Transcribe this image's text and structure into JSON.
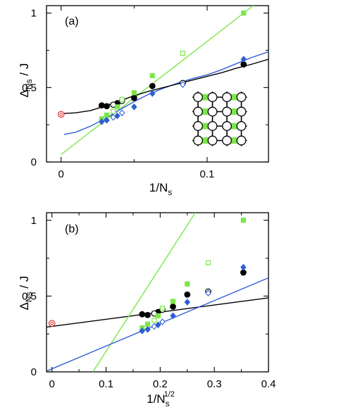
{
  "chart_data": [
    {
      "type": "scatter",
      "panel_label": "(a)",
      "xlabel_main": "1/N",
      "xlabel_sub": "s",
      "xlabel_sup": "",
      "ylabel_main": "Δ",
      "ylabel_sub": "Ns",
      "ylabel_tail": " / J",
      "xlim": [
        -0.01,
        0.142
      ],
      "ylim": [
        0,
        1.05
      ],
      "xticks": [
        {
          "v": 0,
          "label": "0"
        },
        {
          "v": 0.1,
          "label": "0.1"
        }
      ],
      "xminor": [
        0.05
      ],
      "yticks": [
        {
          "v": 0,
          "label": "0"
        },
        {
          "v": 0.5,
          "label": "0.5"
        },
        {
          "v": 1,
          "label": "1"
        }
      ],
      "yminor": [
        0.25,
        0.75
      ],
      "colors": {
        "black": "#000000",
        "green": "#7ce64a",
        "blue": "#2f5ed6",
        "red": "#e03030"
      },
      "series": [
        {
          "color": "black",
          "marker": "circle",
          "filled": true,
          "points": [
            [
              0.0278,
              0.38
            ],
            [
              0.03125,
              0.375
            ],
            [
              0.0385,
              0.395
            ],
            [
              0.05,
              0.43
            ],
            [
              0.0625,
              0.51
            ],
            [
              0.125,
              0.655
            ]
          ]
        },
        {
          "color": "black",
          "marker": "circle",
          "filled": false,
          "points": [
            [
              0.0357,
              0.385
            ],
            [
              0.0417,
              0.41
            ],
            [
              0.0833,
              0.53
            ]
          ]
        },
        {
          "color": "green",
          "marker": "square",
          "filled": true,
          "points": [
            [
              0.0278,
              0.29
            ],
            [
              0.03125,
              0.315
            ],
            [
              0.0385,
              0.37
            ],
            [
              0.05,
              0.465
            ],
            [
              0.0625,
              0.58
            ],
            [
              0.125,
              1.0
            ]
          ]
        },
        {
          "color": "green",
          "marker": "square",
          "filled": false,
          "points": [
            [
              0.0357,
              0.34
            ],
            [
              0.0417,
              0.42
            ],
            [
              0.0833,
              0.73
            ]
          ]
        },
        {
          "color": "blue",
          "marker": "diamond",
          "filled": true,
          "points": [
            [
              0.0278,
              0.27
            ],
            [
              0.03125,
              0.28
            ],
            [
              0.0385,
              0.31
            ],
            [
              0.05,
              0.37
            ],
            [
              0.0625,
              0.46
            ],
            [
              0.125,
              0.69
            ]
          ]
        },
        {
          "color": "blue",
          "marker": "diamond",
          "filled": false,
          "points": [
            [
              0.0357,
              0.3
            ],
            [
              0.0417,
              0.33
            ],
            [
              0.0833,
              0.52
            ]
          ]
        },
        {
          "color": "red",
          "marker": "target",
          "filled": false,
          "points": [
            [
              0.0,
              0.32
            ]
          ]
        }
      ],
      "lines": [
        {
          "color": "green",
          "kind": "linear",
          "intercept": 0.05,
          "slope": 7.6,
          "x": [
            0,
            0.142
          ]
        },
        {
          "color": "blue",
          "kind": "curve",
          "points": [
            [
              0.002,
              0.185
            ],
            [
              0.01,
              0.2
            ],
            [
              0.02,
              0.24
            ],
            [
              0.03,
              0.29
            ],
            [
              0.04,
              0.35
            ],
            [
              0.05,
              0.405
            ],
            [
              0.06,
              0.455
            ],
            [
              0.07,
              0.495
            ],
            [
              0.08,
              0.53
            ],
            [
              0.09,
              0.56
            ],
            [
              0.1,
              0.585
            ],
            [
              0.11,
              0.62
            ],
            [
              0.12,
              0.66
            ],
            [
              0.13,
              0.7
            ],
            [
              0.142,
              0.74
            ]
          ]
        },
        {
          "color": "black",
          "kind": "curve",
          "points": [
            [
              0.0,
              0.325
            ],
            [
              0.01,
              0.33
            ],
            [
              0.02,
              0.345
            ],
            [
              0.03,
              0.375
            ],
            [
              0.04,
              0.41
            ],
            [
              0.05,
              0.445
            ],
            [
              0.06,
              0.475
            ],
            [
              0.07,
              0.5
            ],
            [
              0.08,
              0.525
            ],
            [
              0.09,
              0.55
            ],
            [
              0.1,
              0.575
            ],
            [
              0.11,
              0.6
            ],
            [
              0.12,
              0.63
            ],
            [
              0.13,
              0.655
            ],
            [
              0.142,
              0.69
            ]
          ]
        }
      ],
      "inset": {
        "rows": 4,
        "cols": 4,
        "green_edge_cols": [
          1,
          3
        ]
      }
    },
    {
      "type": "scatter",
      "panel_label": "(b)",
      "xlabel_main": "1/N",
      "xlabel_sub": "s",
      "xlabel_sup": "1/2",
      "ylabel_main": "Δ",
      "ylabel_sub": "Ns",
      "ylabel_tail": " / J",
      "xlim": [
        -0.01,
        0.4
      ],
      "ylim": [
        0,
        1.05
      ],
      "xticks": [
        {
          "v": 0,
          "label": "0"
        },
        {
          "v": 0.1,
          "label": "0.1"
        },
        {
          "v": 0.2,
          "label": "0.2"
        },
        {
          "v": 0.3,
          "label": "0.3"
        },
        {
          "v": 0.4,
          "label": "0.4"
        }
      ],
      "xminor": [
        0.05,
        0.15,
        0.25,
        0.35
      ],
      "yticks": [
        {
          "v": 0,
          "label": "0"
        },
        {
          "v": 0.5,
          "label": "0.5"
        },
        {
          "v": 1,
          "label": "1"
        }
      ],
      "yminor": [
        0.25,
        0.75
      ],
      "colors": {
        "black": "#000000",
        "green": "#7ce64a",
        "blue": "#2f5ed6",
        "red": "#e03030"
      },
      "series": [
        {
          "color": "black",
          "marker": "circle",
          "filled": true,
          "points": [
            [
              0.1667,
              0.38
            ],
            [
              0.1768,
              0.375
            ],
            [
              0.1961,
              0.395
            ],
            [
              0.2236,
              0.43
            ],
            [
              0.25,
              0.51
            ],
            [
              0.3536,
              0.655
            ]
          ]
        },
        {
          "color": "black",
          "marker": "circle",
          "filled": false,
          "points": [
            [
              0.189,
              0.385
            ],
            [
              0.2041,
              0.41
            ],
            [
              0.2887,
              0.53
            ]
          ]
        },
        {
          "color": "green",
          "marker": "square",
          "filled": true,
          "points": [
            [
              0.1667,
              0.29
            ],
            [
              0.1768,
              0.315
            ],
            [
              0.1961,
              0.37
            ],
            [
              0.2236,
              0.465
            ],
            [
              0.25,
              0.58
            ],
            [
              0.3536,
              1.0
            ]
          ]
        },
        {
          "color": "green",
          "marker": "square",
          "filled": false,
          "points": [
            [
              0.189,
              0.34
            ],
            [
              0.2041,
              0.42
            ],
            [
              0.2887,
              0.72
            ]
          ]
        },
        {
          "color": "blue",
          "marker": "diamond",
          "filled": true,
          "points": [
            [
              0.1667,
              0.27
            ],
            [
              0.1768,
              0.28
            ],
            [
              0.1961,
              0.31
            ],
            [
              0.2236,
              0.37
            ],
            [
              0.25,
              0.46
            ],
            [
              0.3536,
              0.69
            ]
          ]
        },
        {
          "color": "blue",
          "marker": "diamond",
          "filled": false,
          "points": [
            [
              0.189,
              0.3
            ],
            [
              0.2041,
              0.33
            ],
            [
              0.2887,
              0.52
            ]
          ]
        },
        {
          "color": "red",
          "marker": "target",
          "filled": false,
          "points": [
            [
              0.0,
              0.32
            ]
          ]
        }
      ],
      "lines": [
        {
          "color": "black",
          "kind": "linear",
          "intercept": 0.3,
          "slope": 0.47,
          "x": [
            -0.01,
            0.4
          ]
        },
        {
          "color": "green",
          "kind": "linear",
          "intercept": -0.42,
          "slope": 5.55,
          "x": [
            0.0757,
            0.4
          ]
        },
        {
          "color": "blue",
          "kind": "linear",
          "intercept": 0.02,
          "slope": 1.5,
          "x": [
            -0.01,
            0.4
          ]
        }
      ]
    }
  ]
}
